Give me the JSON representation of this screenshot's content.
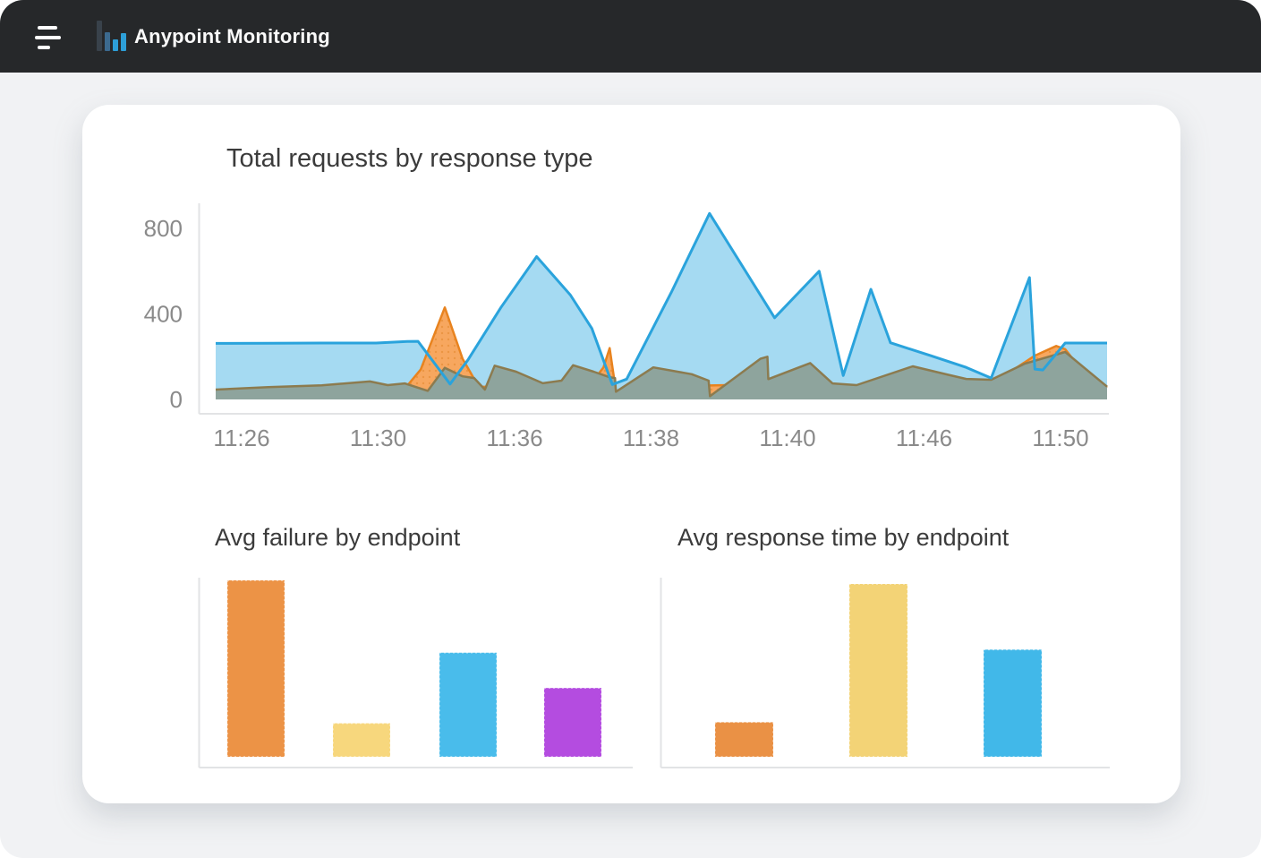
{
  "header": {
    "title": "Anypoint Monitoring",
    "menu_icon": "hamburger-menu",
    "logo_icon": "bar-chart-logo"
  },
  "colors": {
    "topbar_bg": "#26282A",
    "body_bg": "#F1F2F4",
    "card_bg": "#FFFFFF",
    "axis_line": "#E2E3E5",
    "tick_label": "#8A8A8A",
    "title_text": "#3B3B3B"
  },
  "chart_data": [
    {
      "type": "area",
      "title": "Total requests by response type",
      "xlabel": "",
      "ylabel": "",
      "ylim": [
        0,
        900
      ],
      "yticks": [
        0,
        400,
        800
      ],
      "xticklabels": [
        "11:26",
        "11:30",
        "11:36",
        "11:38",
        "11:40",
        "11:46",
        "11:50"
      ],
      "grid": false,
      "legend": "none",
      "series": [
        {
          "name": "blue",
          "stroke": "#2AA3DC",
          "fill": "#A5DAF2",
          "points": [
            [
              0,
              262
            ],
            [
              5.9,
              263
            ],
            [
              11.9,
              264
            ],
            [
              18.0,
              264
            ],
            [
              21.5,
              271
            ],
            [
              22.7,
              272
            ],
            [
              26.3,
              72
            ],
            [
              28.3,
              185
            ],
            [
              32.0,
              430
            ],
            [
              36.0,
              668
            ],
            [
              39.8,
              488
            ],
            [
              42.2,
              332
            ],
            [
              44.5,
              70
            ],
            [
              46.1,
              95
            ],
            [
              51.1,
              500
            ],
            [
              55.4,
              870
            ],
            [
              62.7,
              382
            ],
            [
              67.7,
              600
            ],
            [
              70.4,
              112
            ],
            [
              73.5,
              515
            ],
            [
              75.7,
              265
            ],
            [
              80.2,
              205
            ],
            [
              84.2,
              150
            ],
            [
              87.0,
              100
            ],
            [
              91.3,
              570
            ],
            [
              91.9,
              142
            ],
            [
              92.8,
              138
            ],
            [
              95.3,
              264
            ],
            [
              100,
              264
            ]
          ]
        },
        {
          "name": "orange",
          "stroke": "#E8831F",
          "fill": "#F7A75F",
          "points": [
            [
              0,
              30
            ],
            [
              11.9,
              40
            ],
            [
              21.2,
              50
            ],
            [
              23.0,
              140
            ],
            [
              25.7,
              430
            ],
            [
              27.7,
              190
            ],
            [
              29.5,
              60
            ],
            [
              36.0,
              55
            ],
            [
              42.4,
              90
            ],
            [
              43.5,
              150
            ],
            [
              44.2,
              240
            ],
            [
              44.9,
              40
            ],
            [
              49.1,
              60
            ],
            [
              61.1,
              70
            ],
            [
              71.9,
              55
            ],
            [
              84.2,
              70
            ],
            [
              87.0,
              85
            ],
            [
              88.8,
              120
            ],
            [
              91.9,
              205
            ],
            [
              94.3,
              250
            ],
            [
              95.3,
              235
            ],
            [
              96.9,
              150
            ],
            [
              100,
              55
            ]
          ]
        },
        {
          "name": "olive",
          "stroke": "#8C7B4F",
          "fill": "#8EA49D",
          "points": [
            [
              0,
              46
            ],
            [
              5.9,
              58
            ],
            [
              11.9,
              66
            ],
            [
              17.3,
              84
            ],
            [
              19.3,
              67
            ],
            [
              21.2,
              75
            ],
            [
              23.8,
              40
            ],
            [
              25.7,
              148
            ],
            [
              27.7,
              108
            ],
            [
              29.0,
              100
            ],
            [
              30.2,
              46
            ],
            [
              31.3,
              158
            ],
            [
              33.7,
              130
            ],
            [
              36.7,
              76
            ],
            [
              38.8,
              88
            ],
            [
              40.1,
              160
            ],
            [
              42.4,
              130
            ],
            [
              44.2,
              104
            ],
            [
              44.8,
              100
            ],
            [
              44.9,
              36
            ],
            [
              49.1,
              150
            ],
            [
              53.4,
              118
            ],
            [
              55.3,
              88
            ],
            [
              55.45,
              15
            ],
            [
              61.1,
              190
            ],
            [
              61.9,
              200
            ],
            [
              62.0,
              95
            ],
            [
              66.7,
              170
            ],
            [
              69.2,
              75
            ],
            [
              71.9,
              67
            ],
            [
              78.2,
              155
            ],
            [
              82.2,
              115
            ],
            [
              84.2,
              96
            ],
            [
              87.0,
              92
            ],
            [
              90.8,
              168
            ],
            [
              95.3,
              222
            ],
            [
              100,
              60
            ]
          ]
        }
      ]
    },
    {
      "type": "bar",
      "title": "Avg failure by endpoint",
      "values_relative_pct": [
        100,
        19,
        59,
        39
      ],
      "colors": [
        "#EC9346",
        "#F7D77D",
        "#49BCEB",
        "#B44CE0"
      ],
      "yticks": [],
      "xticklabels": [],
      "grid": false
    },
    {
      "type": "bar",
      "title": "Avg response time by endpoint",
      "values_relative_pct": [
        20,
        100,
        62
      ],
      "colors": [
        "#EA9145",
        "#F3D376",
        "#41B8E9"
      ],
      "yticks": [],
      "xticklabels": [],
      "grid": false
    }
  ]
}
